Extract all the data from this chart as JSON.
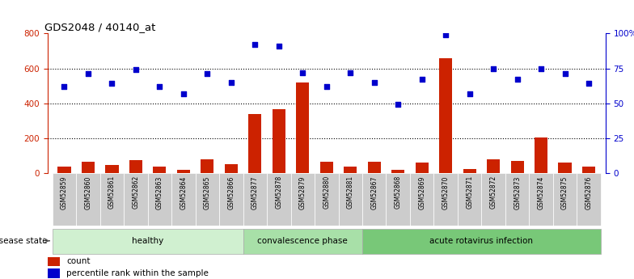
{
  "title": "GDS2048 / 40140_at",
  "samples": [
    "GSM52859",
    "GSM52860",
    "GSM52861",
    "GSM52862",
    "GSM52863",
    "GSM52864",
    "GSM52865",
    "GSM52866",
    "GSM52877",
    "GSM52878",
    "GSM52879",
    "GSM52880",
    "GSM52881",
    "GSM52867",
    "GSM52868",
    "GSM52869",
    "GSM52870",
    "GSM52871",
    "GSM52872",
    "GSM52873",
    "GSM52874",
    "GSM52875",
    "GSM52876"
  ],
  "counts": [
    35,
    65,
    45,
    75,
    35,
    20,
    80,
    50,
    340,
    365,
    520,
    65,
    35,
    65,
    20,
    60,
    660,
    25,
    80,
    70,
    205,
    60,
    35
  ],
  "percentiles": [
    62,
    71,
    64,
    74,
    62,
    57,
    71,
    65,
    92,
    91,
    72,
    62,
    72,
    65,
    49,
    67,
    99,
    57,
    75,
    67,
    75,
    71,
    64
  ],
  "groups": [
    {
      "label": "healthy",
      "start": 0,
      "end": 8,
      "color": "#d0f0d0"
    },
    {
      "label": "convalescence phase",
      "start": 8,
      "end": 13,
      "color": "#a8e0a8"
    },
    {
      "label": "acute rotavirus infection",
      "start": 13,
      "end": 23,
      "color": "#78c878"
    }
  ],
  "bar_color": "#cc2200",
  "dot_color": "#0000cc",
  "left_axis_color": "#cc2200",
  "right_axis_color": "#0000cc",
  "ylim_left": [
    0,
    800
  ],
  "yticks_left": [
    0,
    200,
    400,
    600,
    800
  ],
  "yticks_right": [
    0,
    25,
    50,
    75,
    100
  ],
  "ytick_labels_right": [
    "0",
    "25",
    "50",
    "75",
    "100%"
  ],
  "grid_values": [
    200,
    400,
    600
  ],
  "tick_bg_color": "#cccccc"
}
